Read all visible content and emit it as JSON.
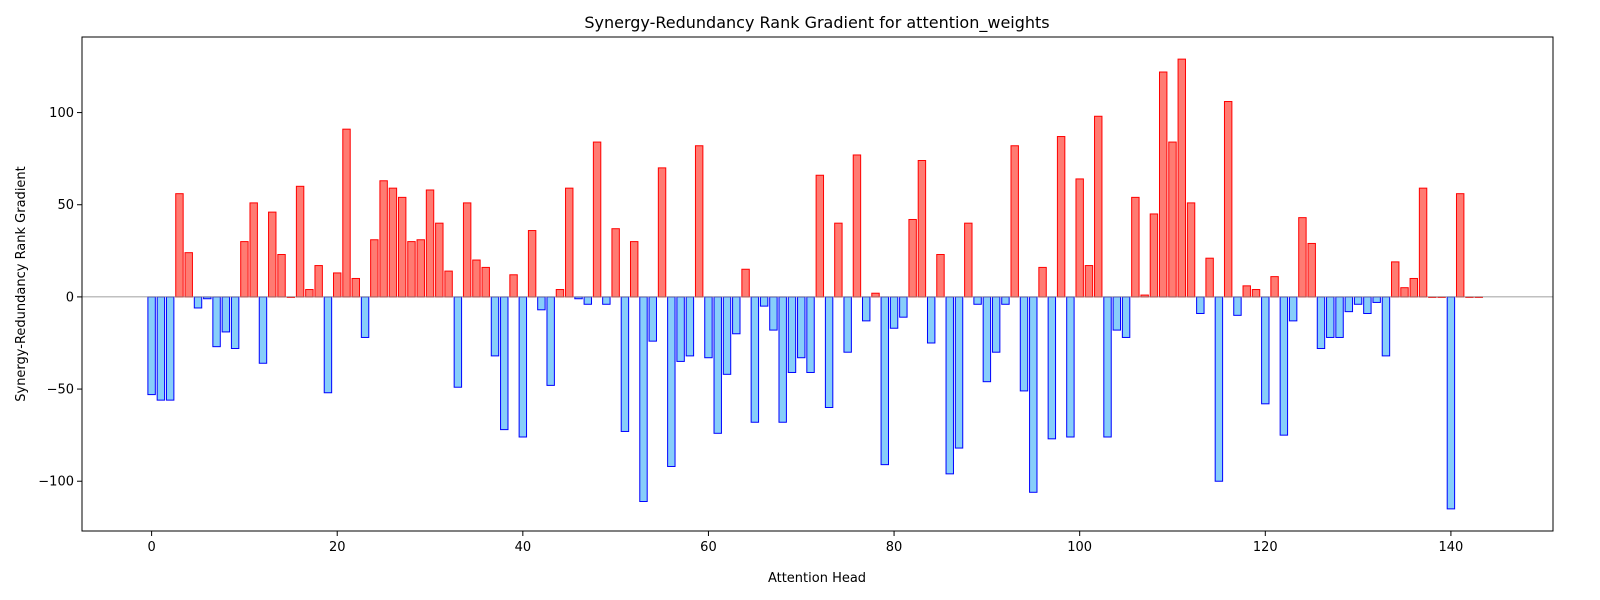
{
  "chart_data": {
    "type": "bar",
    "title": "Synergy-Redundancy Rank Gradient for attention_weights",
    "xlabel": "Attention Head",
    "ylabel": "Synergy-Redundancy Rank Gradient",
    "xlim": [
      -7.5,
      151
    ],
    "ylim": [
      -127,
      141
    ],
    "xticks": [
      0,
      20,
      40,
      60,
      80,
      100,
      120,
      140
    ],
    "yticks": [
      -100,
      -50,
      0,
      50,
      100
    ],
    "grid": false,
    "legend": "none",
    "colors": {
      "positive_fill": "#ff7b72",
      "positive_edge": "#ff0000",
      "negative_fill": "#87cefa",
      "negative_edge": "#0000ff",
      "zero_line": "#808080"
    },
    "x": [
      0,
      1,
      2,
      3,
      4,
      5,
      6,
      7,
      8,
      9,
      10,
      11,
      12,
      13,
      14,
      15,
      16,
      17,
      18,
      19,
      20,
      21,
      22,
      23,
      24,
      25,
      26,
      27,
      28,
      29,
      30,
      31,
      32,
      33,
      34,
      35,
      36,
      37,
      38,
      39,
      40,
      41,
      42,
      43,
      44,
      45,
      46,
      47,
      48,
      49,
      50,
      51,
      52,
      53,
      54,
      55,
      56,
      57,
      58,
      59,
      60,
      61,
      62,
      63,
      64,
      65,
      66,
      67,
      68,
      69,
      70,
      71,
      72,
      73,
      74,
      75,
      76,
      77,
      78,
      79,
      80,
      81,
      82,
      83,
      84,
      85,
      86,
      87,
      88,
      89,
      90,
      91,
      92,
      93,
      94,
      95,
      96,
      97,
      98,
      99,
      100,
      101,
      102,
      103,
      104,
      105,
      106,
      107,
      108,
      109,
      110,
      111,
      112,
      113,
      114,
      115,
      116,
      117,
      118,
      119,
      120,
      121,
      122,
      123,
      124,
      125,
      126,
      127,
      128,
      129,
      130,
      131,
      132,
      133,
      134,
      135,
      136,
      137,
      138,
      139,
      140,
      141,
      142,
      143
    ],
    "values": [
      -53,
      -56,
      -56,
      56,
      24,
      -6,
      -1,
      -27,
      -19,
      -28,
      30,
      51,
      -36,
      46,
      23,
      0,
      60,
      4,
      17,
      -52,
      13,
      91,
      10,
      -22,
      31,
      63,
      59,
      54,
      30,
      31,
      58,
      40,
      14,
      -49,
      51,
      20,
      16,
      -32,
      -72,
      12,
      -76,
      36,
      -7,
      -48,
      4,
      59,
      -1,
      -4,
      84,
      -4,
      37,
      -73,
      30,
      -111,
      -24,
      70,
      -92,
      -35,
      -32,
      82,
      -33,
      -74,
      -42,
      -20,
      15,
      -68,
      -5,
      -18,
      -68,
      -41,
      -33,
      -41,
      66,
      -60,
      40,
      -30,
      77,
      -13,
      2,
      -91,
      -17,
      -11,
      42,
      74,
      -25,
      23,
      -96,
      -82,
      40,
      -4,
      -46,
      -30,
      -4,
      82,
      -51,
      -106,
      16,
      -77,
      87,
      -76,
      64,
      17,
      98,
      -76,
      -18,
      -22,
      54,
      1,
      45,
      122,
      84,
      129,
      51,
      -9,
      21,
      -100,
      106,
      -10,
      6,
      4,
      -58,
      11,
      -75,
      -13,
      43,
      29,
      -28,
      -22,
      -22,
      -8,
      -4,
      -9,
      -3,
      -32,
      19,
      5,
      10,
      59,
      0,
      0,
      -115,
      56,
      0,
      0
    ]
  }
}
